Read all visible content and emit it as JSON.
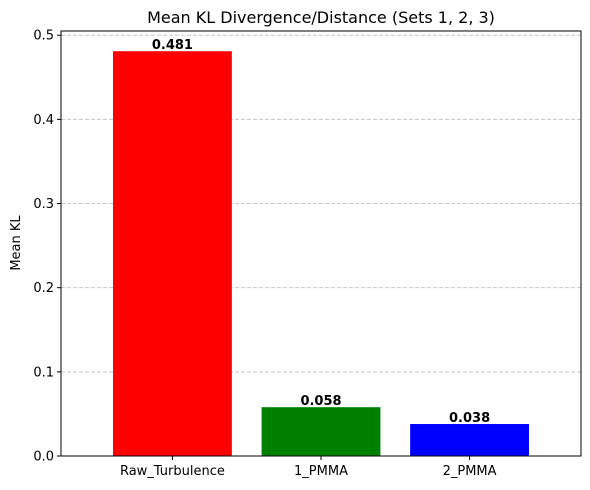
{
  "chart_data": {
    "type": "bar",
    "title": "Mean KL Divergence/Distance (Sets 1, 2, 3)",
    "xlabel": "",
    "ylabel": "Mean KL",
    "categories": [
      "Raw_Turbulence",
      "1_PMMA",
      "2_PMMA"
    ],
    "values": [
      0.481,
      0.058,
      0.038
    ],
    "value_labels": [
      "0.481",
      "0.058",
      "0.038"
    ],
    "bar_colors": [
      "#ff0000",
      "#008000",
      "#0000ff"
    ],
    "ylim": [
      0,
      0.505
    ],
    "yticks": [
      0.0,
      0.1,
      0.2,
      0.3,
      0.4,
      0.5
    ],
    "ytick_labels": [
      "0.0",
      "0.1",
      "0.2",
      "0.3",
      "0.4",
      "0.5"
    ],
    "grid": {
      "axis": "y",
      "style": "dashed",
      "color": "#c8c8c8"
    },
    "legend": "none"
  }
}
